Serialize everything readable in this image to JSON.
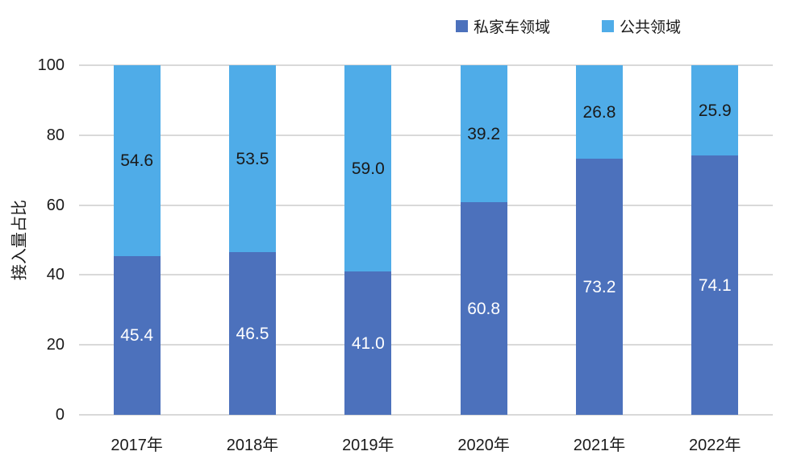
{
  "chart_data": {
    "type": "bar",
    "stacked": true,
    "title": "",
    "ylabel": "接入量占比",
    "xlabel": "",
    "ylim": [
      0,
      100
    ],
    "yticks": [
      0,
      20,
      40,
      60,
      80,
      100
    ],
    "grid": true,
    "legend_position": "top-right",
    "categories": [
      "2017年",
      "2018年",
      "2019年",
      "2020年",
      "2021年",
      "2022年"
    ],
    "series": [
      {
        "name": "私家车领域",
        "color": "#4c71bc",
        "label_color": "#ffffff",
        "values": [
          45.4,
          46.5,
          41.0,
          60.8,
          73.2,
          74.1
        ]
      },
      {
        "name": "公共领域",
        "color": "#4face8",
        "label_color": "#1a1a1a",
        "values": [
          54.6,
          53.5,
          59.0,
          39.2,
          26.8,
          25.9
        ]
      }
    ]
  }
}
